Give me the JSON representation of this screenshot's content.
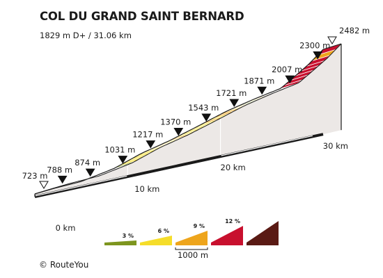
{
  "title": "COL DU GRAND SAINT BERNARD",
  "subtitle": "1829 m D+ / 31.06 km",
  "credit": "© RouteYou",
  "chart_data": {
    "type": "area",
    "title": "COL DU GRAND SAINT BERNARD",
    "subtitle": "1829 m D+ / 31.06 km",
    "x_unit": "km",
    "y_unit": "m",
    "xlim": [
      0,
      31.06
    ],
    "distance_ticks": [
      {
        "km": 0,
        "label": "0 km"
      },
      {
        "km": 10,
        "label": "10 km"
      },
      {
        "km": 20,
        "label": "20 km"
      },
      {
        "km": 30,
        "label": "30 km"
      }
    ],
    "waypoints": [
      {
        "km": 0,
        "elevation": 723,
        "label": "723 m",
        "kind": "endpoint"
      },
      {
        "km": 2,
        "elevation": 788,
        "label": "788 m",
        "kind": "marker"
      },
      {
        "km": 5,
        "elevation": 874,
        "label": "874 m",
        "kind": "marker"
      },
      {
        "km": 8.5,
        "elevation": 1031,
        "label": "1031 m",
        "kind": "marker"
      },
      {
        "km": 11.5,
        "elevation": 1217,
        "label": "1217 m",
        "kind": "marker"
      },
      {
        "km": 14.5,
        "elevation": 1370,
        "label": "1370 m",
        "kind": "marker"
      },
      {
        "km": 17.5,
        "elevation": 1543,
        "label": "1543 m",
        "kind": "marker"
      },
      {
        "km": 20.5,
        "elevation": 1721,
        "label": "1721 m",
        "kind": "marker"
      },
      {
        "km": 23.5,
        "elevation": 1871,
        "label": "1871 m",
        "kind": "marker"
      },
      {
        "km": 26.5,
        "elevation": 2007,
        "label": "2007 m",
        "kind": "marker"
      },
      {
        "km": 29.5,
        "elevation": 2300,
        "label": "2300 m",
        "kind": "marker"
      },
      {
        "km": 31.06,
        "elevation": 2482,
        "label": "2482 m",
        "kind": "endpoint"
      }
    ],
    "segment_colors": [
      "#f5dd2a",
      "#7d951e",
      "#7d951e",
      "#f5dd2a",
      "#f5dd2a",
      "#f5dd2a",
      "#f5dd2a",
      "#7d951e",
      "#f5dd2a",
      "#f5dd2a",
      "#f5dd2a",
      "#f5dd2a",
      "#f5dd2a",
      "#c8102e",
      "#7d951e",
      "#f5dd2a",
      "#f5dd2a",
      "#f5dd2a",
      "#f5dd2a",
      "#f5dd2a",
      "#f5dd2a",
      "#eea51c",
      "#f5dd2a",
      "#f5dd2a",
      "#eea51c",
      "#f5dd2a",
      "#f5dd2a",
      "#f5dd2a",
      "#f5dd2a",
      "#f5dd2a",
      "#eea51c",
      "#f5dd2a",
      "#eea51c",
      "#eea51c",
      "#f5dd2a",
      "#eea51c",
      "#7d951e",
      "#7d951e",
      "#f5dd2a",
      "#eea51c",
      "#eea51c",
      "#eea51c",
      "#7d951e",
      "#eea51c",
      "#c8102e",
      "#c8102e",
      "#c8102e",
      "#c8102e",
      "#c8102e",
      "#c8102e",
      "#eea51c",
      "#c8102e"
    ],
    "legend": {
      "scale_label": "1000 m",
      "items": [
        {
          "label": "3 %",
          "color": "#7d951e"
        },
        {
          "label": "6 %",
          "color": "#f5dd2a"
        },
        {
          "label": "9 %",
          "color": "#eea51c"
        },
        {
          "label": "12 %",
          "color": "#c8102e"
        },
        {
          "label": "",
          "color": "#5a1a14"
        }
      ]
    },
    "colors": {
      "side_face": "#ece8e6",
      "outline": "#1a1a1a",
      "base": "#1a1a1a"
    }
  }
}
